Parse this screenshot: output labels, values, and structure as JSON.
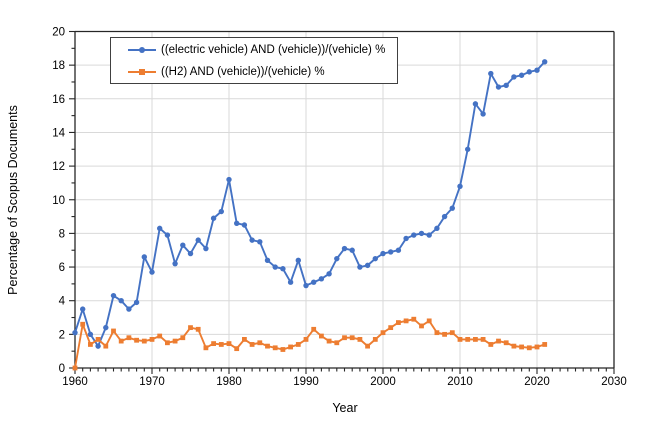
{
  "chart_data": {
    "type": "line",
    "title": "",
    "xlabel": "Year",
    "ylabel": "Percentage of Scopus Documents",
    "xlim": [
      1960,
      2030
    ],
    "ylim": [
      0,
      20
    ],
    "x_major_tick_step": 10,
    "x_minor_tick_step": 1,
    "y_major_tick_step": 2,
    "y_minor_tick_step": 1,
    "x_tick_labels": [
      "1960",
      "1970",
      "1980",
      "1990",
      "2000",
      "2010",
      "2020",
      "2030"
    ],
    "y_tick_labels": [
      "0",
      "2",
      "4",
      "6",
      "8",
      "10",
      "12",
      "14",
      "16",
      "18",
      "20"
    ],
    "grid": {
      "show": true,
      "color": "#d9d9d9"
    },
    "axis_color": "#262626",
    "legend_position": "top-left",
    "x": [
      1960,
      1961,
      1962,
      1963,
      1964,
      1965,
      1966,
      1967,
      1968,
      1969,
      1970,
      1971,
      1972,
      1973,
      1974,
      1975,
      1976,
      1977,
      1978,
      1979,
      1980,
      1981,
      1982,
      1983,
      1984,
      1985,
      1986,
      1987,
      1988,
      1989,
      1990,
      1991,
      1992,
      1993,
      1994,
      1995,
      1996,
      1997,
      1998,
      1999,
      2000,
      2001,
      2002,
      2003,
      2004,
      2005,
      2006,
      2007,
      2008,
      2009,
      2010,
      2011,
      2012,
      2013,
      2014,
      2015,
      2016,
      2017,
      2018,
      2019,
      2020,
      2021
    ],
    "series": [
      {
        "name": "((electric vehicle) AND (vehicle))/(vehicle) %",
        "color": "#4472c4",
        "marker": "circle",
        "values": [
          2.1,
          3.5,
          2.0,
          1.3,
          2.4,
          4.3,
          4.0,
          3.5,
          3.9,
          6.6,
          5.7,
          8.3,
          7.9,
          6.2,
          7.3,
          6.8,
          7.6,
          7.1,
          8.9,
          9.3,
          11.2,
          8.6,
          8.5,
          7.6,
          7.5,
          6.4,
          6.0,
          5.9,
          5.1,
          6.4,
          4.9,
          5.1,
          5.3,
          5.6,
          6.5,
          7.1,
          7.0,
          6.0,
          6.1,
          6.5,
          6.8,
          6.9,
          7.0,
          7.7,
          7.9,
          8.0,
          7.9,
          8.3,
          9.0,
          9.5,
          10.8,
          13.0,
          15.7,
          15.1,
          17.5,
          16.7,
          16.8,
          17.3,
          17.4,
          17.6,
          17.7,
          18.2
        ]
      },
      {
        "name": "((H2) AND (vehicle))/(vehicle) %",
        "color": "#ed7d31",
        "marker": "square",
        "values": [
          0.0,
          2.6,
          1.4,
          1.7,
          1.3,
          2.2,
          1.6,
          1.8,
          1.65,
          1.6,
          1.7,
          1.9,
          1.5,
          1.6,
          1.8,
          2.4,
          2.3,
          1.2,
          1.45,
          1.4,
          1.45,
          1.15,
          1.7,
          1.4,
          1.5,
          1.3,
          1.2,
          1.1,
          1.25,
          1.4,
          1.7,
          2.3,
          1.9,
          1.6,
          1.5,
          1.8,
          1.8,
          1.7,
          1.3,
          1.7,
          2.1,
          2.4,
          2.7,
          2.8,
          2.9,
          2.5,
          2.8,
          2.1,
          2.0,
          2.1,
          1.7,
          1.7,
          1.7,
          1.7,
          1.4,
          1.6,
          1.5,
          1.3,
          1.25,
          1.2,
          1.25,
          1.4
        ]
      }
    ]
  }
}
